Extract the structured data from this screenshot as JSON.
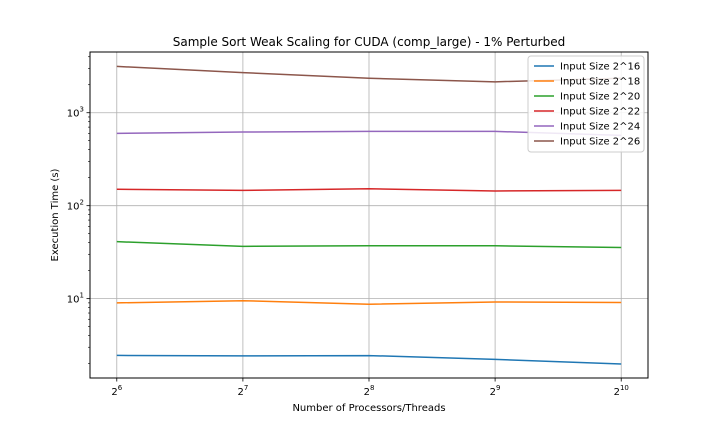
{
  "chart_data": {
    "type": "line",
    "title": "Sample Sort Weak Scaling for CUDA (comp_large) - 1% Perturbed",
    "xlabel": "Number of Processors/Threads",
    "ylabel": "Execution Time (s)",
    "x_scale": "log2",
    "y_scale": "log10",
    "x": [
      64,
      128,
      256,
      512,
      1024
    ],
    "x_tick_labels": [
      {
        "base": "2",
        "exp": "6"
      },
      {
        "base": "2",
        "exp": "7"
      },
      {
        "base": "2",
        "exp": "8"
      },
      {
        "base": "2",
        "exp": "9"
      },
      {
        "base": "2",
        "exp": "10"
      }
    ],
    "y_tick_labels": [
      {
        "base": "10",
        "exp": "1",
        "value": 10
      },
      {
        "base": "10",
        "exp": "2",
        "value": 100
      },
      {
        "base": "10",
        "exp": "3",
        "value": 1000
      }
    ],
    "ylim": [
      1.4,
      4500
    ],
    "grid": true,
    "legend_position": "top-right",
    "series": [
      {
        "name": "Input Size 2^16",
        "color": "#1f77b4",
        "values": [
          2.45,
          2.42,
          2.44,
          2.22,
          1.98
        ]
      },
      {
        "name": "Input Size 2^18",
        "color": "#ff7f0e",
        "values": [
          9.0,
          9.5,
          8.7,
          9.2,
          9.1
        ]
      },
      {
        "name": "Input Size 2^20",
        "color": "#2ca02c",
        "values": [
          41.0,
          36.5,
          37.0,
          37.0,
          35.5
        ]
      },
      {
        "name": "Input Size 2^22",
        "color": "#d62728",
        "values": [
          150,
          146,
          152,
          144,
          146
        ]
      },
      {
        "name": "Input Size 2^24",
        "color": "#9467bd",
        "values": [
          600,
          620,
          630,
          630,
          570
        ]
      },
      {
        "name": "Input Size 2^26",
        "color": "#8c564b",
        "values": [
          3150,
          2700,
          2350,
          2150,
          2350
        ]
      }
    ]
  }
}
